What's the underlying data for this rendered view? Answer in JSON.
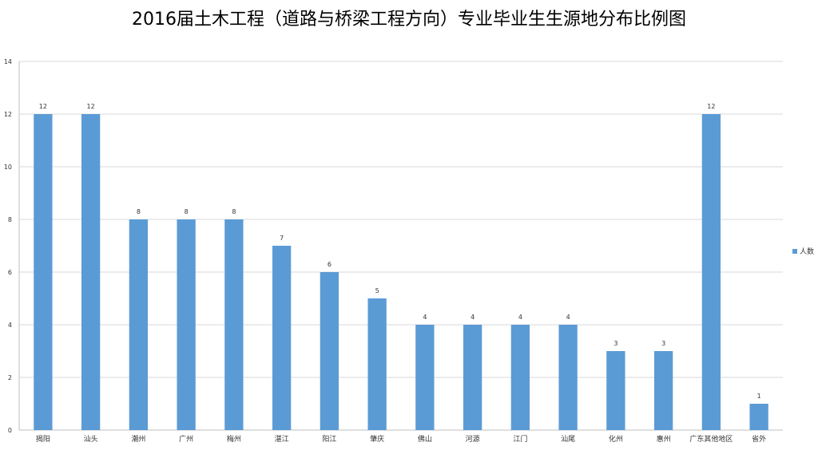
{
  "chart_data": {
    "type": "bar",
    "title": "2016届土木工程（道路与桥梁工程方向）专业毕业生生源地分布比例图",
    "categories": [
      "揭阳",
      "汕头",
      "潮州",
      "广州",
      "梅州",
      "湛江",
      "阳江",
      "肇庆",
      "佛山",
      "河源",
      "江门",
      "汕尾",
      "化州",
      "惠州",
      "广东其他地区",
      "省外"
    ],
    "series": [
      {
        "name": "人数",
        "values": [
          12,
          12,
          8,
          8,
          8,
          7,
          6,
          5,
          4,
          4,
          4,
          4,
          3,
          3,
          12,
          1
        ]
      }
    ],
    "ylim": [
      0,
      14
    ],
    "yticks": [
      0,
      2,
      4,
      6,
      8,
      10,
      12,
      14
    ],
    "xlabel": "",
    "ylabel": "",
    "grid": true,
    "legend_position": "right",
    "data_labels": true,
    "colors": {
      "bar": "#5b9bd5",
      "grid": "#d9d9d9",
      "axis": "#bfbfbf",
      "text": "#333333"
    }
  }
}
